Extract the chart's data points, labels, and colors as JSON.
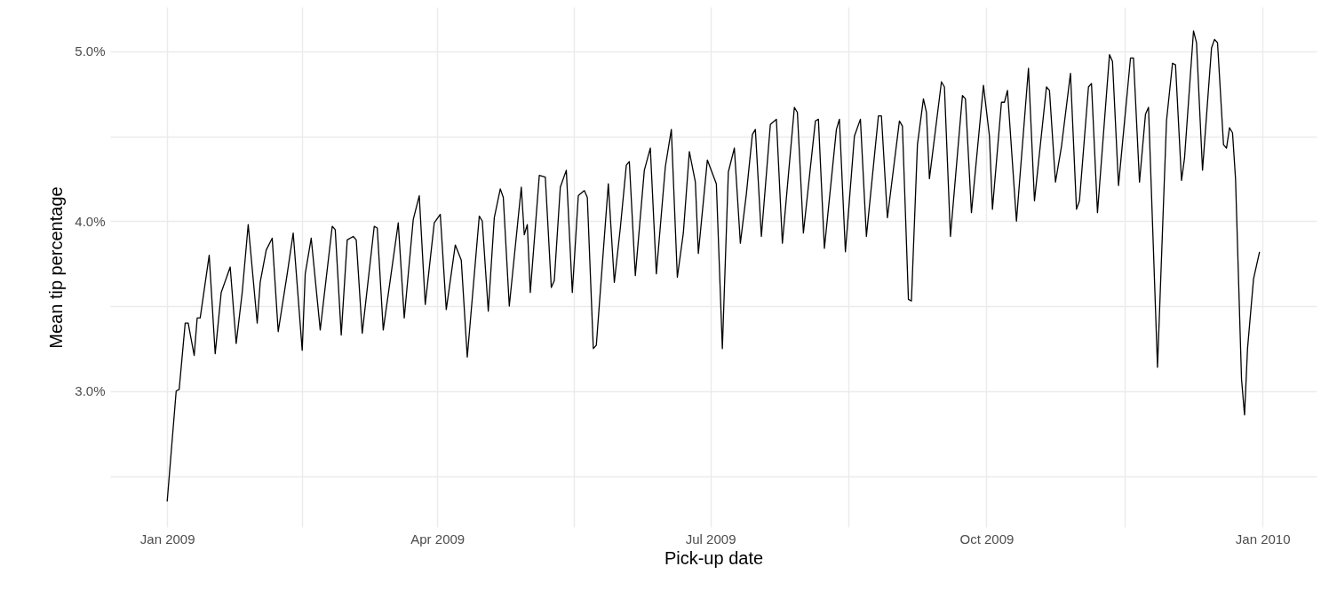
{
  "chart_data": {
    "type": "line",
    "xlabel": "Pick-up date",
    "ylabel": "Mean tip percentage",
    "grid": true,
    "marker": "none",
    "line_style": "solid",
    "xlim": [
      "2008-12-13",
      "2010-01-19"
    ],
    "xticks": [
      {
        "value": "2009-01-01",
        "label": "Jan 2009"
      },
      {
        "value": "2009-02-15",
        "label": null
      },
      {
        "value": "2009-04-01",
        "label": "Apr 2009"
      },
      {
        "value": "2009-05-16T12:00",
        "label": null
      },
      {
        "value": "2009-07-01",
        "label": "Jul 2009"
      },
      {
        "value": "2009-08-16",
        "label": null
      },
      {
        "value": "2009-10-01",
        "label": "Oct 2009"
      },
      {
        "value": "2009-11-16",
        "label": null
      },
      {
        "value": "2010-01-01",
        "label": "Jan 2010"
      }
    ],
    "ylim": [
      2.2,
      5.26
    ],
    "yticks": [
      {
        "value": 2.5,
        "label": null
      },
      {
        "value": 3,
        "label": "3.0%"
      },
      {
        "value": 3.5,
        "label": null
      },
      {
        "value": 4,
        "label": "4.0%"
      },
      {
        "value": 4.5,
        "label": null
      },
      {
        "value": 5,
        "label": "5.0%"
      }
    ],
    "x": [
      "2009-01-01",
      "2009-01-04",
      "2009-01-05",
      "2009-01-07",
      "2009-01-08",
      "2009-01-10",
      "2009-01-11",
      "2009-01-12",
      "2009-01-15",
      "2009-01-17",
      "2009-01-19",
      "2009-01-22",
      "2009-01-24",
      "2009-01-26",
      "2009-01-28",
      "2009-01-31",
      "2009-02-01",
      "2009-02-03",
      "2009-02-05",
      "2009-02-07",
      "2009-02-10",
      "2009-02-12",
      "2009-02-15",
      "2009-02-16",
      "2009-02-18",
      "2009-02-21",
      "2009-02-25",
      "2009-02-26",
      "2009-02-28",
      "2009-03-02",
      "2009-03-04",
      "2009-03-05",
      "2009-03-07",
      "2009-03-11",
      "2009-03-12",
      "2009-03-14",
      "2009-03-19",
      "2009-03-21",
      "2009-03-24",
      "2009-03-26",
      "2009-03-28",
      "2009-03-31",
      "2009-04-02",
      "2009-04-04",
      "2009-04-07",
      "2009-04-09",
      "2009-04-11",
      "2009-04-15",
      "2009-04-16",
      "2009-04-18",
      "2009-04-20",
      "2009-04-22",
      "2009-04-23",
      "2009-04-25",
      "2009-04-29",
      "2009-04-30",
      "2009-05-01",
      "2009-05-02",
      "2009-05-05",
      "2009-05-07",
      "2009-05-09",
      "2009-05-10",
      "2009-05-12",
      "2009-05-14",
      "2009-05-16",
      "2009-05-18",
      "2009-05-20",
      "2009-05-21",
      "2009-05-23",
      "2009-05-24",
      "2009-05-28",
      "2009-05-30",
      "2009-06-01",
      "2009-06-03",
      "2009-06-04",
      "2009-06-06",
      "2009-06-09",
      "2009-06-11",
      "2009-06-13",
      "2009-06-16",
      "2009-06-18",
      "2009-06-20",
      "2009-06-22",
      "2009-06-24",
      "2009-06-26",
      "2009-06-27",
      "2009-06-30",
      "2009-07-03",
      "2009-07-05",
      "2009-07-07",
      "2009-07-09",
      "2009-07-11",
      "2009-07-13",
      "2009-07-15",
      "2009-07-16",
      "2009-07-18",
      "2009-07-21",
      "2009-07-23",
      "2009-07-25",
      "2009-07-29",
      "2009-07-30",
      "2009-08-01",
      "2009-08-05",
      "2009-08-06",
      "2009-08-08",
      "2009-08-12",
      "2009-08-13",
      "2009-08-15",
      "2009-08-18",
      "2009-08-20",
      "2009-08-22",
      "2009-08-26",
      "2009-08-27",
      "2009-08-29",
      "2009-09-02",
      "2009-09-03",
      "2009-09-05",
      "2009-09-06",
      "2009-09-08",
      "2009-09-10",
      "2009-09-11",
      "2009-09-12",
      "2009-09-16",
      "2009-09-17",
      "2009-09-19",
      "2009-09-23",
      "2009-09-24",
      "2009-09-26",
      "2009-09-30",
      "2009-10-02",
      "2009-10-03",
      "2009-10-06",
      "2009-10-07",
      "2009-10-08",
      "2009-10-11",
      "2009-10-15",
      "2009-10-17",
      "2009-10-21",
      "2009-10-22",
      "2009-10-24",
      "2009-10-26",
      "2009-10-29",
      "2009-10-31",
      "2009-11-01",
      "2009-11-04",
      "2009-11-05",
      "2009-11-07",
      "2009-11-11",
      "2009-11-12",
      "2009-11-14",
      "2009-11-18",
      "2009-11-19",
      "2009-11-21",
      "2009-11-23",
      "2009-11-24",
      "2009-11-27",
      "2009-11-30",
      "2009-12-02",
      "2009-12-03",
      "2009-12-05",
      "2009-12-06",
      "2009-12-09",
      "2009-12-10",
      "2009-12-12",
      "2009-12-15",
      "2009-12-16",
      "2009-12-17",
      "2009-12-19",
      "2009-12-20",
      "2009-12-21",
      "2009-12-22",
      "2009-12-23",
      "2009-12-25",
      "2009-12-26",
      "2009-12-27",
      "2009-12-29",
      "2009-12-31"
    ],
    "series": [
      {
        "color": "#000000",
        "values": [
          2.35,
          3.0,
          3.01,
          3.4,
          3.4,
          3.21,
          3.43,
          3.43,
          3.8,
          3.22,
          3.58,
          3.73,
          3.28,
          3.58,
          3.98,
          3.4,
          3.64,
          3.83,
          3.9,
          3.35,
          3.69,
          3.93,
          3.24,
          3.69,
          3.9,
          3.36,
          3.97,
          3.95,
          3.33,
          3.89,
          3.91,
          3.89,
          3.34,
          3.97,
          3.96,
          3.36,
          3.99,
          3.43,
          4.01,
          4.15,
          3.51,
          3.99,
          4.04,
          3.48,
          3.86,
          3.77,
          3.2,
          4.03,
          4.0,
          3.47,
          4.02,
          4.19,
          4.14,
          3.5,
          4.2,
          3.92,
          3.98,
          3.58,
          4.27,
          4.26,
          3.61,
          3.65,
          4.2,
          4.3,
          3.58,
          4.15,
          4.18,
          4.14,
          3.25,
          3.27,
          4.22,
          3.64,
          3.96,
          4.33,
          4.35,
          3.68,
          4.3,
          4.43,
          3.69,
          4.32,
          4.54,
          3.67,
          3.93,
          4.41,
          4.23,
          3.81,
          4.36,
          4.22,
          3.25,
          4.29,
          4.43,
          3.87,
          4.16,
          4.51,
          4.54,
          3.91,
          4.57,
          4.6,
          3.87,
          4.67,
          4.64,
          3.93,
          4.59,
          4.6,
          3.84,
          4.54,
          4.6,
          3.82,
          4.5,
          4.6,
          3.91,
          4.62,
          4.62,
          4.02,
          4.59,
          4.56,
          3.54,
          3.53,
          4.45,
          4.72,
          4.64,
          4.25,
          4.82,
          4.79,
          3.91,
          4.74,
          4.72,
          4.05,
          4.8,
          4.5,
          4.07,
          4.7,
          4.7,
          4.77,
          4.0,
          4.9,
          4.12,
          4.79,
          4.77,
          4.23,
          4.44,
          4.87,
          4.07,
          4.12,
          4.79,
          4.81,
          4.05,
          4.98,
          4.94,
          4.21,
          4.96,
          4.96,
          4.23,
          4.63,
          4.67,
          3.14,
          4.59,
          4.93,
          4.92,
          4.24,
          4.37,
          5.12,
          5.05,
          4.3,
          5.02,
          5.07,
          5.05,
          4.45,
          4.43,
          4.55,
          4.52,
          4.25,
          3.07,
          2.86,
          3.25,
          3.66,
          3.82
        ]
      }
    ]
  }
}
